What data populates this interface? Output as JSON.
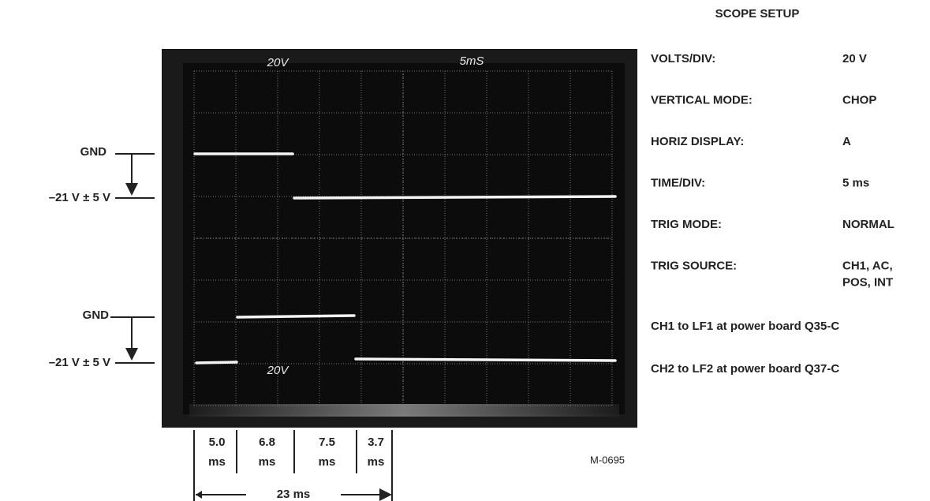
{
  "setup": {
    "title": "SCOPE SETUP",
    "rows": [
      {
        "label": "VOLTS/DIV:",
        "value": [
          "20 V"
        ]
      },
      {
        "label": "VERTICAL MODE:",
        "value": [
          "CHOP"
        ]
      },
      {
        "label": "HORIZ DISPLAY:",
        "value": [
          "A"
        ]
      },
      {
        "label": "TIME/DIV:",
        "value": [
          "5 ms"
        ]
      },
      {
        "label": "TRIG MODE:",
        "value": [
          "NORMAL"
        ]
      },
      {
        "label": "TRIG SOURCE:",
        "value": [
          "CH1, AC,",
          "POS, INT"
        ]
      }
    ],
    "notes": [
      "CH1 to LF1 at power board Q35-C",
      "CH2 to LF2 at power board Q37-C"
    ]
  },
  "screen": {
    "volts_top": "20V",
    "time": "5mS",
    "volts_bottom": "20V"
  },
  "levels": {
    "ch1_gnd": "GND",
    "ch1_level": "–21 V ± 5 V",
    "ch2_gnd": "GND",
    "ch2_level": "–21 V ± 5 V"
  },
  "timing": {
    "segments": [
      {
        "value": "5.0",
        "unit": "ms"
      },
      {
        "value": "6.8",
        "unit": "ms"
      },
      {
        "value": "7.5",
        "unit": "ms"
      },
      {
        "value": "3.7",
        "unit": "ms"
      }
    ],
    "total": "23 ms"
  },
  "figure_id": "M-0695"
}
